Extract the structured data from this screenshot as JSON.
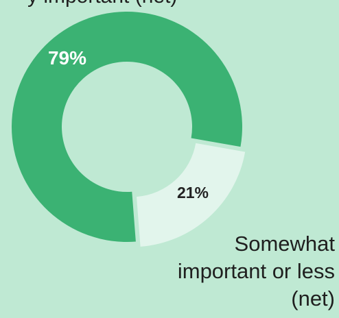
{
  "chart_data": {
    "type": "pie",
    "variant": "donut",
    "slices": [
      {
        "label": "",
        "value": 79,
        "display": "79%",
        "color": "#3bb273"
      },
      {
        "label": "Somewhat important or less (net)",
        "value": 21,
        "display": "21%",
        "color": "#e2f5ec"
      }
    ]
  },
  "header": {
    "partial_text": "y important (net)"
  },
  "legend": {
    "somewhat_label": "Somewhat important or less (net)"
  },
  "colors": {
    "background": "#bfe9d3",
    "major": "#3bb273",
    "minor": "#e2f5ec"
  }
}
